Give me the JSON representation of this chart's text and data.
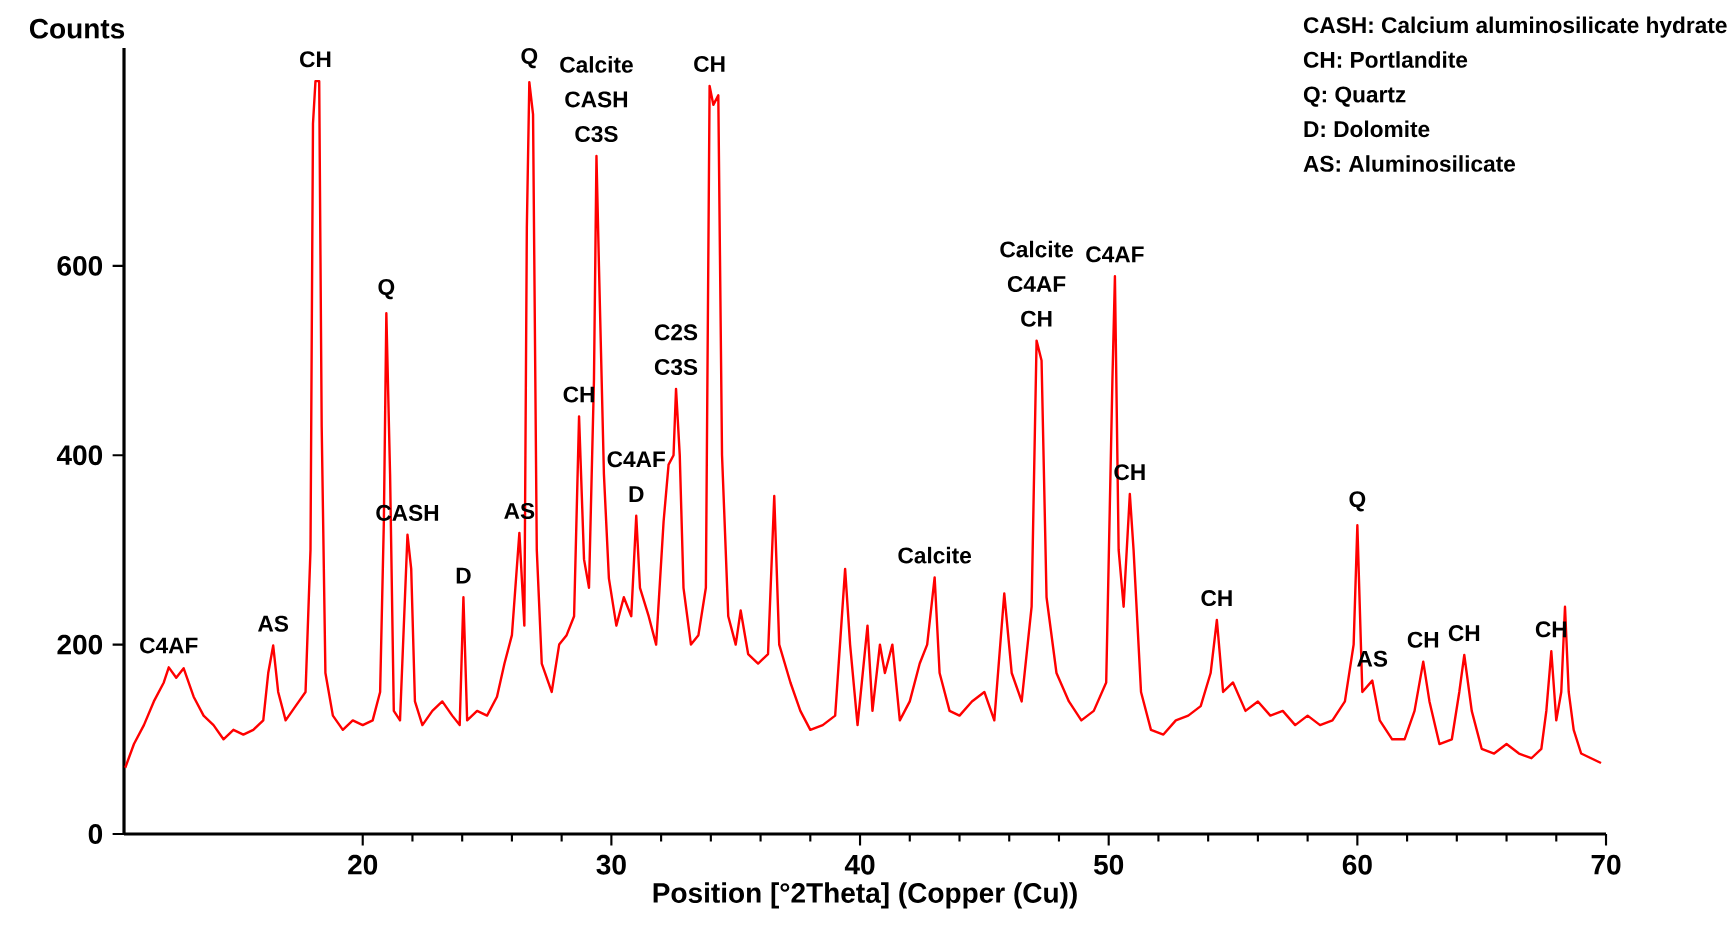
{
  "chart_data": {
    "type": "line",
    "xlabel": "Position [°2Theta] (Copper (Cu))",
    "ylabel": "Counts",
    "xlim": [
      10.4,
      70
    ],
    "ylim": [
      0,
      830
    ],
    "xticks": [
      20,
      30,
      40,
      50,
      60,
      70
    ],
    "yticks": [
      0,
      200,
      400,
      600
    ],
    "series": [
      {
        "color": "#ff0000",
        "x": [
          10.45,
          10.8,
          11.2,
          11.6,
          12.0,
          12.2,
          12.5,
          12.8,
          13.2,
          13.6,
          14.0,
          14.4,
          14.8,
          15.2,
          15.6,
          16.0,
          16.2,
          16.4,
          16.6,
          16.9,
          17.3,
          17.7,
          17.9,
          18.0,
          18.1,
          18.25,
          18.35,
          18.5,
          18.8,
          19.2,
          19.6,
          20.0,
          20.4,
          20.7,
          20.85,
          20.95,
          21.1,
          21.25,
          21.5,
          21.8,
          21.95,
          22.1,
          22.4,
          22.8,
          23.2,
          23.6,
          23.9,
          24.05,
          24.2,
          24.6,
          25.0,
          25.4,
          25.7,
          26.0,
          26.3,
          26.5,
          26.6,
          26.7,
          26.85,
          27.0,
          27.2,
          27.6,
          27.9,
          28.2,
          28.5,
          28.7,
          28.9,
          29.1,
          29.3,
          29.4,
          29.5,
          29.7,
          29.9,
          30.2,
          30.5,
          30.8,
          31.0,
          31.15,
          31.5,
          31.8,
          32.1,
          32.3,
          32.5,
          32.6,
          32.75,
          32.9,
          33.2,
          33.5,
          33.8,
          33.95,
          34.1,
          34.3,
          34.45,
          34.7,
          35.0,
          35.2,
          35.5,
          35.9,
          36.3,
          36.55,
          36.75,
          37.2,
          37.6,
          38.0,
          38.5,
          39.0,
          39.4,
          39.6,
          39.9,
          40.3,
          40.5,
          40.8,
          41.0,
          41.3,
          41.6,
          42.0,
          42.4,
          42.7,
          43.0,
          43.2,
          43.6,
          44.0,
          44.5,
          45.0,
          45.4,
          45.8,
          46.1,
          46.5,
          46.9,
          47.1,
          47.3,
          47.5,
          47.9,
          48.4,
          48.9,
          49.4,
          49.9,
          50.15,
          50.25,
          50.4,
          50.6,
          50.85,
          51.0,
          51.3,
          51.7,
          52.2,
          52.7,
          53.2,
          53.7,
          54.1,
          54.35,
          54.6,
          55.0,
          55.5,
          56.0,
          56.5,
          57.0,
          57.5,
          58.0,
          58.5,
          59.0,
          59.5,
          59.85,
          60.0,
          60.2,
          60.6,
          60.9,
          61.4,
          61.9,
          62.3,
          62.65,
          62.9,
          63.3,
          63.8,
          64.1,
          64.3,
          64.6,
          65.0,
          65.5,
          66.0,
          66.5,
          67.0,
          67.4,
          67.6,
          67.8,
          68.0,
          68.2,
          68.35,
          68.5,
          68.7,
          69.0,
          69.4,
          69.8
        ],
        "values": [
          70,
          95,
          115,
          140,
          160,
          176,
          165,
          175,
          145,
          125,
          115,
          100,
          110,
          105,
          110,
          120,
          170,
          199,
          150,
          120,
          135,
          150,
          300,
          750,
          795,
          795,
          430,
          170,
          125,
          110,
          120,
          115,
          120,
          150,
          330,
          550,
          380,
          130,
          120,
          316,
          280,
          140,
          115,
          130,
          140,
          125,
          115,
          250,
          120,
          130,
          125,
          145,
          180,
          210,
          318,
          220,
          640,
          794,
          760,
          300,
          180,
          150,
          200,
          210,
          230,
          441,
          290,
          260,
          480,
          716,
          600,
          380,
          270,
          220,
          250,
          230,
          336,
          260,
          230,
          200,
          330,
          390,
          400,
          470,
          400,
          260,
          200,
          210,
          260,
          790,
          770,
          780,
          400,
          230,
          200,
          236,
          190,
          180,
          190,
          357,
          200,
          160,
          130,
          110,
          115,
          125,
          280,
          200,
          115,
          220,
          130,
          200,
          170,
          200,
          120,
          140,
          180,
          200,
          271,
          170,
          130,
          125,
          140,
          150,
          120,
          254,
          170,
          140,
          240,
          521,
          500,
          250,
          170,
          140,
          120,
          130,
          160,
          480,
          589,
          300,
          240,
          359,
          300,
          150,
          110,
          105,
          120,
          125,
          135,
          170,
          226,
          150,
          160,
          130,
          140,
          125,
          130,
          115,
          125,
          115,
          120,
          140,
          200,
          326,
          150,
          162,
          120,
          100,
          100,
          130,
          182,
          140,
          95,
          100,
          150,
          189,
          130,
          90,
          85,
          95,
          85,
          80,
          90,
          130,
          193,
          120,
          150,
          240,
          150,
          110,
          85,
          80,
          75
        ]
      }
    ],
    "annotations": [
      {
        "text": "C4AF",
        "x": 12.2,
        "y": 176
      },
      {
        "text": "AS",
        "x": 16.4,
        "y": 199
      },
      {
        "text": "CH",
        "x": 18.1,
        "y": 795
      },
      {
        "text": "Q",
        "x": 20.95,
        "y": 550
      },
      {
        "text": "CASH",
        "x": 21.8,
        "y": 316
      },
      {
        "text": "D",
        "x": 24.05,
        "y": 250
      },
      {
        "text": "AS",
        "x": 26.3,
        "y": 318
      },
      {
        "text": "Q",
        "x": 26.7,
        "y": 794
      },
      {
        "text": "CH",
        "x": 28.7,
        "y": 441
      },
      "Calcite",
      "CASH",
      {
        "text": "C3S",
        "x": 29.4,
        "y": 716
      },
      "C4AF",
      {
        "text": "D",
        "x": 31.0,
        "y": 336
      },
      "C2S",
      {
        "text": "C3S",
        "x": 32.6,
        "y": 470
      },
      {
        "text": "CH",
        "x": 33.95,
        "y": 790
      },
      {
        "text": "Calcite",
        "x": 43.0,
        "y": 271
      },
      "Calcite",
      "C4AF",
      {
        "text": "CH",
        "x": 47.1,
        "y": 521
      },
      {
        "text": "C4AF",
        "x": 50.25,
        "y": 589
      },
      {
        "text": "CH",
        "x": 50.85,
        "y": 359
      },
      {
        "text": "CH",
        "x": 54.35,
        "y": 226
      },
      {
        "text": "Q",
        "x": 60.0,
        "y": 326
      },
      {
        "text": "AS",
        "x": 60.6,
        "y": 162
      },
      {
        "text": "CH",
        "x": 62.65,
        "y": 182
      },
      {
        "text": "CH",
        "x": 64.3,
        "y": 189
      },
      {
        "text": "CH",
        "x": 67.8,
        "y": 193
      },
      "CASH: Calcium aluminosilicate hydrate",
      "CH: Portlandite",
      "Q: Quartz",
      "D: Dolomite",
      "AS: Aluminosilicate"
    ]
  }
}
